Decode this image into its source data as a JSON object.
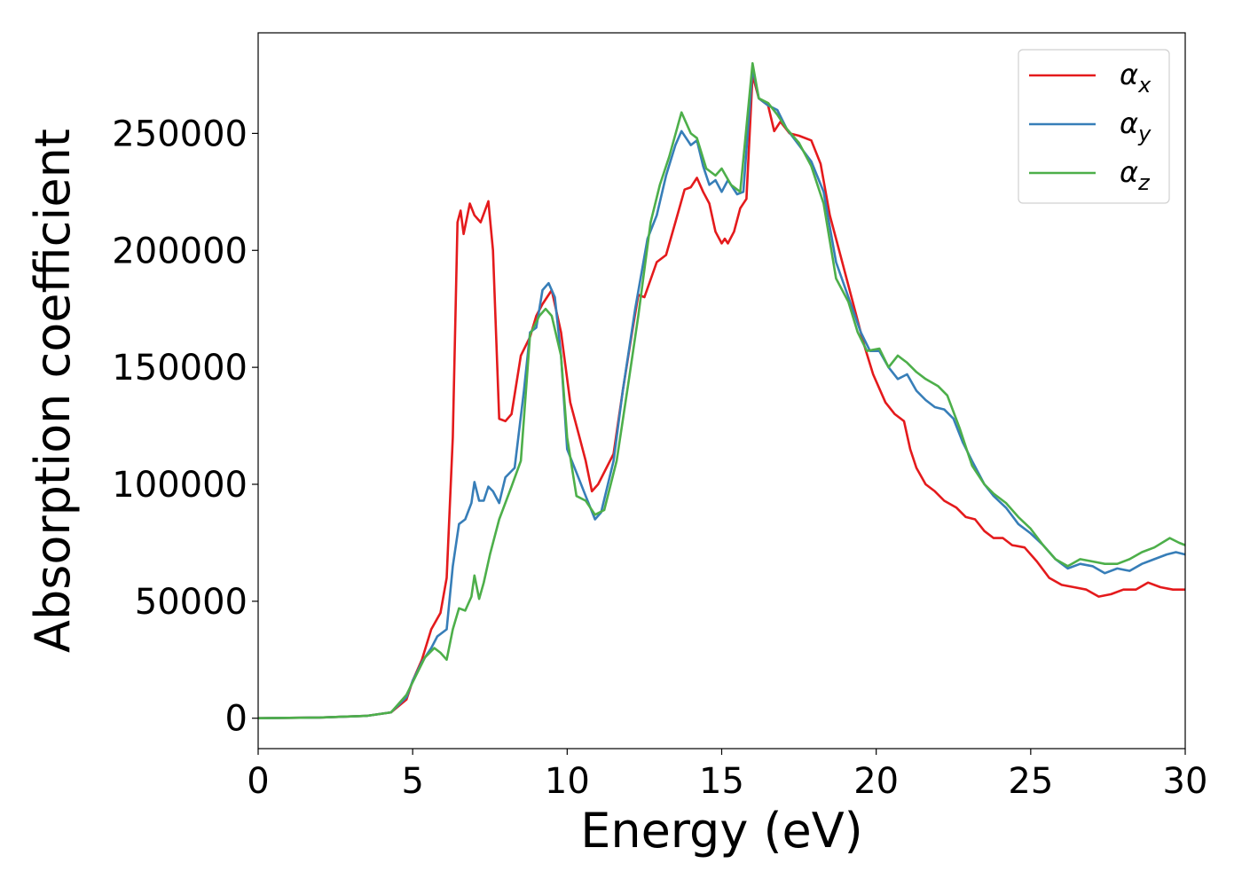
{
  "chart_data": {
    "type": "line",
    "xlabel": "Energy (eV)",
    "ylabel": "Absorption coefficient",
    "xlim": [
      0,
      30
    ],
    "ylim": [
      -13000,
      293000
    ],
    "xticks": [
      0,
      5,
      10,
      15,
      20,
      25,
      30
    ],
    "yticks": [
      0,
      50000,
      100000,
      150000,
      200000,
      250000
    ],
    "grid": false,
    "legend_position": "top-right",
    "series": [
      {
        "name": "α",
        "subscript": "x",
        "color": "#e41a1c",
        "points": [
          [
            0,
            0
          ],
          [
            2,
            300
          ],
          [
            3.5,
            1000
          ],
          [
            4.3,
            2500
          ],
          [
            4.8,
            8000
          ],
          [
            5.0,
            16000
          ],
          [
            5.3,
            25000
          ],
          [
            5.6,
            38000
          ],
          [
            5.9,
            45000
          ],
          [
            6.1,
            60000
          ],
          [
            6.3,
            120000
          ],
          [
            6.45,
            212000
          ],
          [
            6.55,
            217000
          ],
          [
            6.65,
            207000
          ],
          [
            6.85,
            220000
          ],
          [
            7.0,
            215000
          ],
          [
            7.2,
            212000
          ],
          [
            7.45,
            221000
          ],
          [
            7.6,
            200000
          ],
          [
            7.8,
            128000
          ],
          [
            8.0,
            127000
          ],
          [
            8.2,
            130000
          ],
          [
            8.5,
            155000
          ],
          [
            8.8,
            163000
          ],
          [
            9.0,
            172000
          ],
          [
            9.2,
            177000
          ],
          [
            9.5,
            183000
          ],
          [
            9.8,
            165000
          ],
          [
            10.1,
            135000
          ],
          [
            10.4,
            120000
          ],
          [
            10.6,
            110000
          ],
          [
            10.8,
            97000
          ],
          [
            11.0,
            100000
          ],
          [
            11.5,
            113000
          ],
          [
            11.8,
            140000
          ],
          [
            12.1,
            165000
          ],
          [
            12.3,
            181000
          ],
          [
            12.5,
            180000
          ],
          [
            12.9,
            195000
          ],
          [
            13.2,
            198000
          ],
          [
            13.5,
            212000
          ],
          [
            13.8,
            226000
          ],
          [
            14.0,
            227000
          ],
          [
            14.2,
            231000
          ],
          [
            14.4,
            225000
          ],
          [
            14.6,
            220000
          ],
          [
            14.8,
            208000
          ],
          [
            15.0,
            203000
          ],
          [
            15.1,
            205000
          ],
          [
            15.2,
            203000
          ],
          [
            15.4,
            208000
          ],
          [
            15.6,
            218000
          ],
          [
            15.8,
            222000
          ],
          [
            16.0,
            275000
          ],
          [
            16.2,
            265000
          ],
          [
            16.5,
            262000
          ],
          [
            16.7,
            251000
          ],
          [
            16.9,
            255000
          ],
          [
            17.2,
            250000
          ],
          [
            17.5,
            249000
          ],
          [
            17.9,
            247000
          ],
          [
            18.2,
            237000
          ],
          [
            18.5,
            215000
          ],
          [
            18.8,
            200000
          ],
          [
            19.2,
            180000
          ],
          [
            19.6,
            160000
          ],
          [
            19.9,
            147000
          ],
          [
            20.3,
            135000
          ],
          [
            20.6,
            130000
          ],
          [
            20.9,
            127000
          ],
          [
            21.1,
            115000
          ],
          [
            21.3,
            107000
          ],
          [
            21.6,
            100000
          ],
          [
            21.9,
            97000
          ],
          [
            22.2,
            93000
          ],
          [
            22.6,
            90000
          ],
          [
            22.9,
            86000
          ],
          [
            23.2,
            85000
          ],
          [
            23.5,
            80000
          ],
          [
            23.8,
            77000
          ],
          [
            24.1,
            77000
          ],
          [
            24.4,
            74000
          ],
          [
            24.8,
            73000
          ],
          [
            25.2,
            67000
          ],
          [
            25.6,
            60000
          ],
          [
            26.0,
            57000
          ],
          [
            26.4,
            56000
          ],
          [
            26.8,
            55000
          ],
          [
            27.2,
            52000
          ],
          [
            27.6,
            53000
          ],
          [
            28.0,
            55000
          ],
          [
            28.4,
            55000
          ],
          [
            28.8,
            58000
          ],
          [
            29.2,
            56000
          ],
          [
            29.6,
            55000
          ],
          [
            30.0,
            55000
          ]
        ]
      },
      {
        "name": "α",
        "subscript": "y",
        "color": "#377eb8",
        "points": [
          [
            0,
            0
          ],
          [
            2,
            300
          ],
          [
            3.5,
            1000
          ],
          [
            4.3,
            2500
          ],
          [
            4.8,
            9000
          ],
          [
            5.0,
            16000
          ],
          [
            5.3,
            24000
          ],
          [
            5.6,
            30000
          ],
          [
            5.8,
            35000
          ],
          [
            6.1,
            38000
          ],
          [
            6.3,
            65000
          ],
          [
            6.5,
            83000
          ],
          [
            6.7,
            85000
          ],
          [
            6.9,
            92000
          ],
          [
            7.0,
            101000
          ],
          [
            7.15,
            93000
          ],
          [
            7.3,
            93000
          ],
          [
            7.45,
            99000
          ],
          [
            7.6,
            97000
          ],
          [
            7.8,
            92000
          ],
          [
            8.0,
            103000
          ],
          [
            8.3,
            107000
          ],
          [
            8.6,
            140000
          ],
          [
            8.8,
            165000
          ],
          [
            9.0,
            167000
          ],
          [
            9.2,
            183000
          ],
          [
            9.4,
            186000
          ],
          [
            9.6,
            180000
          ],
          [
            9.8,
            155000
          ],
          [
            10.0,
            115000
          ],
          [
            10.3,
            105000
          ],
          [
            10.6,
            95000
          ],
          [
            10.9,
            85000
          ],
          [
            11.1,
            88000
          ],
          [
            11.5,
            110000
          ],
          [
            11.8,
            140000
          ],
          [
            12.2,
            175000
          ],
          [
            12.6,
            205000
          ],
          [
            12.9,
            215000
          ],
          [
            13.2,
            232000
          ],
          [
            13.5,
            245000
          ],
          [
            13.7,
            251000
          ],
          [
            14.0,
            245000
          ],
          [
            14.2,
            247000
          ],
          [
            14.4,
            236000
          ],
          [
            14.6,
            228000
          ],
          [
            14.8,
            230000
          ],
          [
            15.0,
            225000
          ],
          [
            15.2,
            230000
          ],
          [
            15.5,
            224000
          ],
          [
            15.7,
            225000
          ],
          [
            16.0,
            278000
          ],
          [
            16.2,
            265000
          ],
          [
            16.5,
            262000
          ],
          [
            16.8,
            260000
          ],
          [
            17.1,
            252000
          ],
          [
            17.5,
            245000
          ],
          [
            17.9,
            238000
          ],
          [
            18.3,
            225000
          ],
          [
            18.7,
            195000
          ],
          [
            19.1,
            180000
          ],
          [
            19.5,
            165000
          ],
          [
            19.8,
            157000
          ],
          [
            20.1,
            157000
          ],
          [
            20.4,
            150000
          ],
          [
            20.7,
            145000
          ],
          [
            21.0,
            147000
          ],
          [
            21.3,
            140000
          ],
          [
            21.6,
            136000
          ],
          [
            21.9,
            133000
          ],
          [
            22.2,
            132000
          ],
          [
            22.5,
            128000
          ],
          [
            22.8,
            118000
          ],
          [
            23.1,
            110000
          ],
          [
            23.5,
            100000
          ],
          [
            23.8,
            95000
          ],
          [
            24.2,
            90000
          ],
          [
            24.6,
            83000
          ],
          [
            25.0,
            79000
          ],
          [
            25.4,
            74000
          ],
          [
            25.8,
            68000
          ],
          [
            26.2,
            64000
          ],
          [
            26.6,
            66000
          ],
          [
            27.0,
            65000
          ],
          [
            27.4,
            62000
          ],
          [
            27.8,
            64000
          ],
          [
            28.2,
            63000
          ],
          [
            28.6,
            66000
          ],
          [
            29.0,
            68000
          ],
          [
            29.4,
            70000
          ],
          [
            29.7,
            71000
          ],
          [
            30.0,
            70000
          ]
        ]
      },
      {
        "name": "α",
        "subscript": "z",
        "color": "#4daf4a",
        "points": [
          [
            0,
            0
          ],
          [
            2,
            300
          ],
          [
            3.5,
            1000
          ],
          [
            4.3,
            2500
          ],
          [
            4.8,
            10000
          ],
          [
            5.1,
            18000
          ],
          [
            5.4,
            26000
          ],
          [
            5.7,
            30000
          ],
          [
            5.9,
            28000
          ],
          [
            6.1,
            25000
          ],
          [
            6.3,
            38000
          ],
          [
            6.5,
            47000
          ],
          [
            6.7,
            46000
          ],
          [
            6.9,
            52000
          ],
          [
            7.0,
            61000
          ],
          [
            7.15,
            51000
          ],
          [
            7.3,
            58000
          ],
          [
            7.5,
            70000
          ],
          [
            7.8,
            85000
          ],
          [
            8.2,
            99000
          ],
          [
            8.5,
            110000
          ],
          [
            8.8,
            164000
          ],
          [
            9.1,
            172000
          ],
          [
            9.3,
            175000
          ],
          [
            9.5,
            172000
          ],
          [
            9.8,
            155000
          ],
          [
            10.0,
            120000
          ],
          [
            10.3,
            95000
          ],
          [
            10.6,
            93000
          ],
          [
            10.9,
            87000
          ],
          [
            11.2,
            89000
          ],
          [
            11.6,
            110000
          ],
          [
            12.0,
            145000
          ],
          [
            12.3,
            172000
          ],
          [
            12.7,
            212000
          ],
          [
            13.0,
            228000
          ],
          [
            13.3,
            240000
          ],
          [
            13.7,
            259000
          ],
          [
            14.0,
            250000
          ],
          [
            14.2,
            248000
          ],
          [
            14.5,
            235000
          ],
          [
            14.8,
            232000
          ],
          [
            15.0,
            235000
          ],
          [
            15.3,
            228000
          ],
          [
            15.6,
            225000
          ],
          [
            16.0,
            280000
          ],
          [
            16.2,
            265000
          ],
          [
            16.5,
            263000
          ],
          [
            16.8,
            258000
          ],
          [
            17.1,
            252000
          ],
          [
            17.5,
            246000
          ],
          [
            17.9,
            236000
          ],
          [
            18.3,
            220000
          ],
          [
            18.7,
            188000
          ],
          [
            19.1,
            178000
          ],
          [
            19.4,
            165000
          ],
          [
            19.7,
            157000
          ],
          [
            20.1,
            158000
          ],
          [
            20.4,
            150000
          ],
          [
            20.7,
            155000
          ],
          [
            21.0,
            152000
          ],
          [
            21.3,
            148000
          ],
          [
            21.6,
            145000
          ],
          [
            22.0,
            142000
          ],
          [
            22.3,
            138000
          ],
          [
            22.7,
            124000
          ],
          [
            23.1,
            108000
          ],
          [
            23.5,
            100000
          ],
          [
            23.8,
            96000
          ],
          [
            24.2,
            92000
          ],
          [
            24.6,
            86000
          ],
          [
            25.0,
            81000
          ],
          [
            25.4,
            74000
          ],
          [
            25.8,
            68000
          ],
          [
            26.2,
            65000
          ],
          [
            26.6,
            68000
          ],
          [
            27.0,
            67000
          ],
          [
            27.4,
            66000
          ],
          [
            27.8,
            66000
          ],
          [
            28.2,
            68000
          ],
          [
            28.6,
            71000
          ],
          [
            29.0,
            73000
          ],
          [
            29.5,
            77000
          ],
          [
            29.8,
            75000
          ],
          [
            30.0,
            74000
          ]
        ]
      }
    ]
  }
}
